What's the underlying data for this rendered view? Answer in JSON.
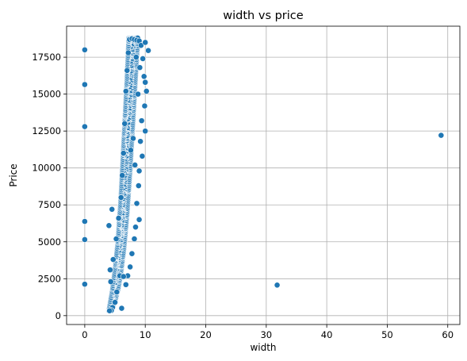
{
  "chart_data": {
    "type": "scatter",
    "title": "width vs price",
    "xlabel": "width",
    "ylabel": "Price",
    "xlim": [
      -3,
      62
    ],
    "ylim": [
      -600,
      19600
    ],
    "xticks": [
      0,
      10,
      20,
      30,
      40,
      50,
      60
    ],
    "yticks": [
      0,
      2500,
      5000,
      7500,
      10000,
      12500,
      15000,
      17500
    ],
    "grid": true,
    "color": "#1f77b4",
    "main_cluster": {
      "lower_edge": [
        [
          4.0,
          330
        ],
        [
          4.5,
          500
        ],
        [
          5.0,
          1000
        ],
        [
          5.5,
          1800
        ],
        [
          6.0,
          3000
        ],
        [
          6.5,
          4700
        ],
        [
          7.0,
          7000
        ],
        [
          7.5,
          10000
        ],
        [
          8.0,
          13500
        ],
        [
          8.5,
          17000
        ],
        [
          8.8,
          18800
        ]
      ],
      "upper_edge": [
        [
          4.0,
          330
        ],
        [
          4.5,
          1500
        ],
        [
          5.0,
          3000
        ],
        [
          5.5,
          5000
        ],
        [
          6.0,
          8000
        ],
        [
          6.5,
          12000
        ],
        [
          7.0,
          16000
        ],
        [
          7.3,
          18800
        ]
      ],
      "max_price": 18800,
      "min_price": 330
    },
    "points": [
      {
        "x": 0,
        "y": 18000
      },
      {
        "x": 0,
        "y": 15650
      },
      {
        "x": 0,
        "y": 12800
      },
      {
        "x": 0,
        "y": 6380
      },
      {
        "x": 0,
        "y": 5150
      },
      {
        "x": 0,
        "y": 2130
      },
      {
        "x": 31.8,
        "y": 2070
      },
      {
        "x": 58.9,
        "y": 12210
      },
      {
        "x": 4.0,
        "y": 6100
      },
      {
        "x": 4.5,
        "y": 7200
      },
      {
        "x": 4.2,
        "y": 3100
      },
      {
        "x": 4.3,
        "y": 2300
      },
      {
        "x": 4.6,
        "y": 550
      },
      {
        "x": 6.1,
        "y": 500
      },
      {
        "x": 4.7,
        "y": 3800
      },
      {
        "x": 5.2,
        "y": 5200
      },
      {
        "x": 5.6,
        "y": 6600
      },
      {
        "x": 6.0,
        "y": 8000
      },
      {
        "x": 6.2,
        "y": 9500
      },
      {
        "x": 6.4,
        "y": 11000
      },
      {
        "x": 6.6,
        "y": 13000
      },
      {
        "x": 6.8,
        "y": 15200
      },
      {
        "x": 7.0,
        "y": 16600
      },
      {
        "x": 7.2,
        "y": 17800
      },
      {
        "x": 7.4,
        "y": 18700
      },
      {
        "x": 7.8,
        "y": 18750
      },
      {
        "x": 8.2,
        "y": 18700
      },
      {
        "x": 8.6,
        "y": 18650
      },
      {
        "x": 9.0,
        "y": 18600
      },
      {
        "x": 9.3,
        "y": 18300
      },
      {
        "x": 9.6,
        "y": 17400
      },
      {
        "x": 10.0,
        "y": 18500
      },
      {
        "x": 10.2,
        "y": 15200
      },
      {
        "x": 10.5,
        "y": 17950
      },
      {
        "x": 9.8,
        "y": 16200
      },
      {
        "x": 10.0,
        "y": 15800
      },
      {
        "x": 9.9,
        "y": 14200
      },
      {
        "x": 9.4,
        "y": 13200
      },
      {
        "x": 10.0,
        "y": 12500
      },
      {
        "x": 9.2,
        "y": 11800
      },
      {
        "x": 9.5,
        "y": 10800
      },
      {
        "x": 9.0,
        "y": 9800
      },
      {
        "x": 8.9,
        "y": 8800
      },
      {
        "x": 8.6,
        "y": 7600
      },
      {
        "x": 9.0,
        "y": 6500
      },
      {
        "x": 8.4,
        "y": 6000
      },
      {
        "x": 8.2,
        "y": 5200
      },
      {
        "x": 7.8,
        "y": 4200
      },
      {
        "x": 7.5,
        "y": 3300
      },
      {
        "x": 7.1,
        "y": 2700
      },
      {
        "x": 6.8,
        "y": 2100
      },
      {
        "x": 5.8,
        "y": 2700
      },
      {
        "x": 6.4,
        "y": 2650
      },
      {
        "x": 5.3,
        "y": 1600
      },
      {
        "x": 5.0,
        "y": 900
      },
      {
        "x": 4.4,
        "y": 350
      },
      {
        "x": 4.1,
        "y": 330
      },
      {
        "x": 8.8,
        "y": 15000
      },
      {
        "x": 9.1,
        "y": 16800
      },
      {
        "x": 8.5,
        "y": 17500
      },
      {
        "x": 8.0,
        "y": 12000
      },
      {
        "x": 8.3,
        "y": 10200
      },
      {
        "x": 7.6,
        "y": 11200
      }
    ]
  }
}
